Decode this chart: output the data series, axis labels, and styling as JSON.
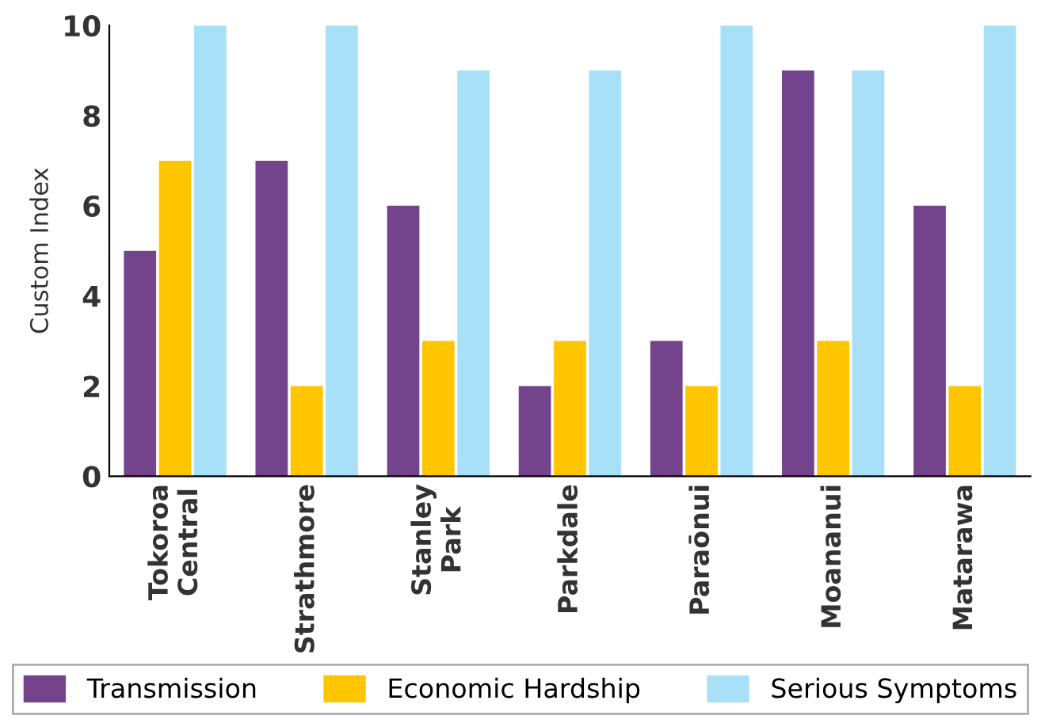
{
  "chart_data": {
    "type": "bar",
    "ylabel": "Custom Index",
    "categories": [
      "Tokoroa\nCentral",
      "Strathmore",
      "Stanley\nPark",
      "Parkdale",
      "Paraōnui",
      "Moananui",
      "Matarawa"
    ],
    "series": [
      {
        "name": "Transmission",
        "color": "#73448c",
        "values": [
          5,
          7,
          6,
          2,
          3,
          9,
          6
        ]
      },
      {
        "name": "Economic Hardship",
        "color": "#ffc600",
        "values": [
          7,
          2,
          3,
          3,
          2,
          3,
          2
        ]
      },
      {
        "name": "Serious Symptoms",
        "color": "#a8e0f8",
        "values": [
          10,
          10,
          9,
          9,
          10,
          9,
          10
        ]
      }
    ],
    "ylim": [
      0,
      10
    ],
    "yticks": [
      0,
      2,
      4,
      6,
      8,
      10
    ],
    "grid": false,
    "legend": "bottom"
  }
}
